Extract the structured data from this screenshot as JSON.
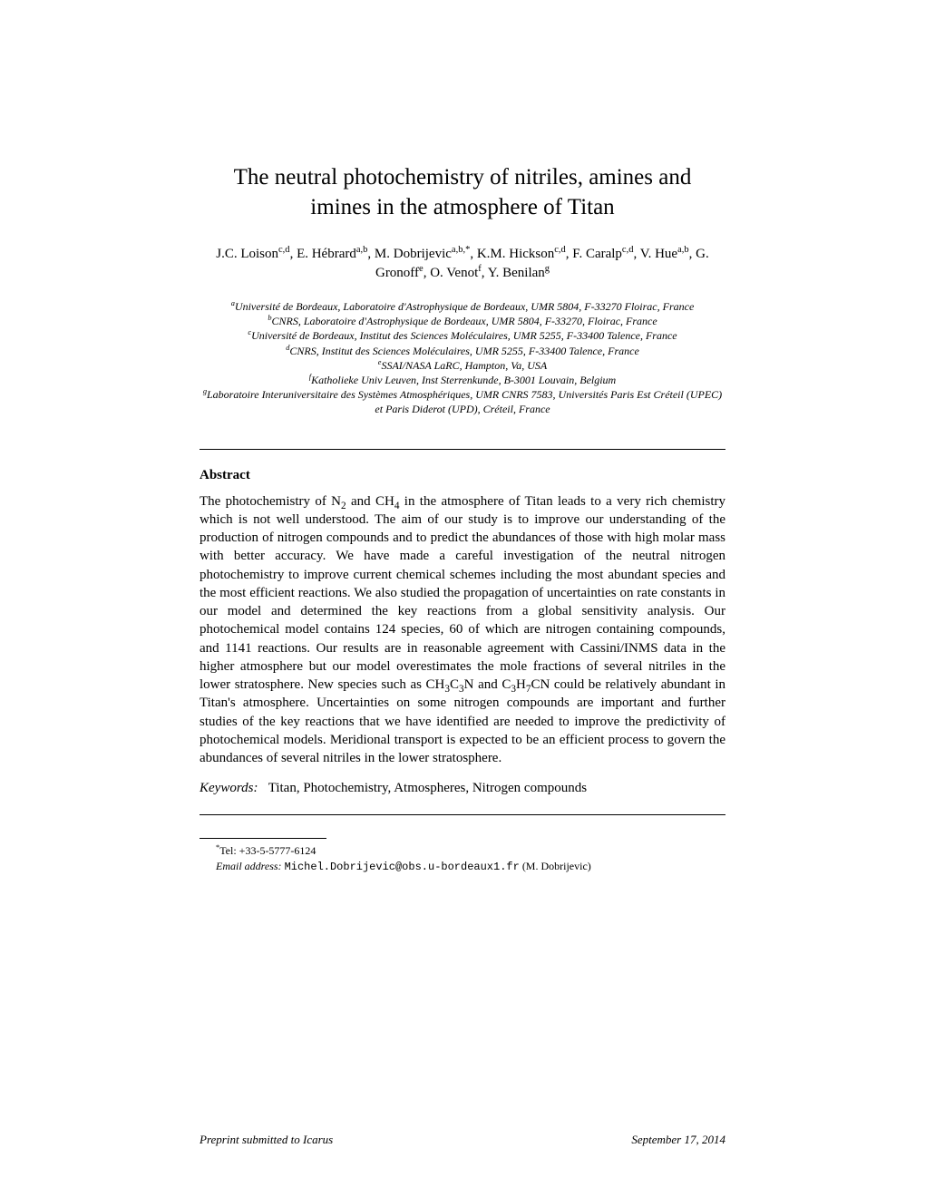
{
  "title_line1": "The neutral photochemistry of nitriles, amines and",
  "title_line2": "imines in the atmosphere of Titan",
  "authors_html": "J.C. Loison<sup>c,d</sup>, E. Hébrard<sup>a,b</sup>, M. Dobrijevic<sup>a,b,*</sup>, K.M. Hickson<sup>c,d</sup>, F. Caralp<sup>c,d</sup>, V. Hue<sup>a,b</sup>, G. Gronoff<sup>e</sup>, O. Venot<sup>f</sup>, Y. Benilan<sup>g</sup>",
  "affiliations": {
    "a": "Université de Bordeaux, Laboratoire d'Astrophysique de Bordeaux, UMR 5804, F-33270 Floirac, France",
    "b": "CNRS, Laboratoire d'Astrophysique de Bordeaux, UMR 5804, F-33270, Floirac, France",
    "c": "Université de Bordeaux, Institut des Sciences Moléculaires, UMR 5255, F-33400 Talence, France",
    "d": "CNRS, Institut des Sciences Moléculaires, UMR 5255, F-33400 Talence, France",
    "e": "SSAI/NASA LaRC, Hampton, Va, USA",
    "f": "Katholieke Univ Leuven, Inst Sterrenkunde, B-3001 Louvain, Belgium",
    "g": "Laboratoire Interuniversitaire des Systèmes Atmosphériques, UMR CNRS 7583, Universités Paris Est Créteil (UPEC) et Paris Diderot (UPD), Créteil, France"
  },
  "abstract_heading": "Abstract",
  "abstract_body_html": "The photochemistry of N<sub>2</sub> and CH<sub>4</sub> in the atmosphere of Titan leads to a very rich chemistry which is not well understood. The aim of our study is to improve our understanding of the production of nitrogen compounds and to predict the abundances of those with high molar mass with better accuracy. We have made a careful investigation of the neutral nitrogen photochemistry to improve current chemical schemes including the most abundant species and the most efficient reactions. We also studied the propagation of uncertainties on rate constants in our model and determined the key reactions from a global sensitivity analysis. Our photochemical model contains 124 species, 60 of which are nitrogen containing compounds, and 1141 reactions. Our results are in reasonable agreement with Cassini/INMS data in the higher atmosphere but our model overestimates the mole fractions of several nitriles in the lower stratosphere. New species such as CH<sub>3</sub>C<sub>3</sub>N and C<sub>3</sub>H<sub>7</sub>CN could be relatively abundant in Titan's atmosphere. Uncertainties on some nitrogen compounds are important and further studies of the key reactions that we have identified are needed to improve the predictivity of photochemical models. Meridional transport is expected to be an efficient process to govern the abundances of several nitriles in the lower stratosphere.",
  "keywords_label": "Keywords:",
  "keywords_text": "Titan, Photochemistry, Atmospheres, Nitrogen compounds",
  "footnotes": {
    "tel_marker": "*",
    "tel_text": "Tel: +33-5-5777-6124",
    "email_label": "Email address:",
    "email_value": "Michel.Dobrijevic@obs.u-bordeaux1.fr",
    "email_attribution": "(M. Dobrijevic)"
  },
  "footer": {
    "left": "Preprint submitted to Icarus",
    "right": "September 17, 2014"
  }
}
